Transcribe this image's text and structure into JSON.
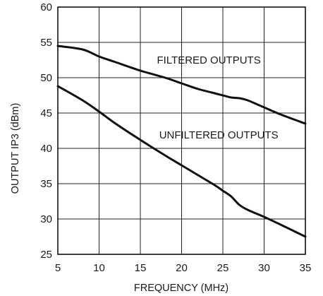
{
  "chart_data": {
    "type": "line",
    "xlabel": "FREQUENCY (MHz)",
    "ylabel": "OUTPUT IP3 (dBm)",
    "xlim": [
      5,
      35
    ],
    "ylim": [
      25,
      60
    ],
    "x_ticks": [
      5,
      10,
      15,
      20,
      25,
      30,
      35
    ],
    "y_ticks": [
      25,
      30,
      35,
      40,
      45,
      50,
      55,
      60
    ],
    "grid": true,
    "series": [
      {
        "name": "FILTERED OUTPUTS",
        "x": [
          5,
          8,
          10,
          12,
          15,
          18,
          20,
          22,
          24,
          25,
          26,
          27,
          28,
          30,
          32,
          35
        ],
        "y": [
          54.5,
          54.0,
          53.0,
          52.2,
          51.0,
          50.0,
          49.2,
          48.4,
          47.8,
          47.5,
          47.2,
          47.1,
          46.8,
          45.8,
          44.8,
          43.5
        ]
      },
      {
        "name": "UNFILTERED OUTPUTS",
        "x": [
          5,
          8,
          10,
          12,
          15,
          18,
          20,
          22,
          24,
          25,
          26,
          27,
          28,
          30,
          32,
          35
        ],
        "y": [
          48.8,
          46.8,
          45.2,
          43.5,
          41.2,
          39.0,
          37.6,
          36.2,
          34.8,
          34.0,
          33.2,
          32.0,
          31.3,
          30.3,
          29.2,
          27.5
        ]
      }
    ],
    "annotations": [
      {
        "text": "FILTERED OUTPUTS",
        "x": 23.3,
        "y": 52.0
      },
      {
        "text": "UNFILTERED OUTPUTS",
        "x": 24.5,
        "y": 41.4
      }
    ]
  }
}
